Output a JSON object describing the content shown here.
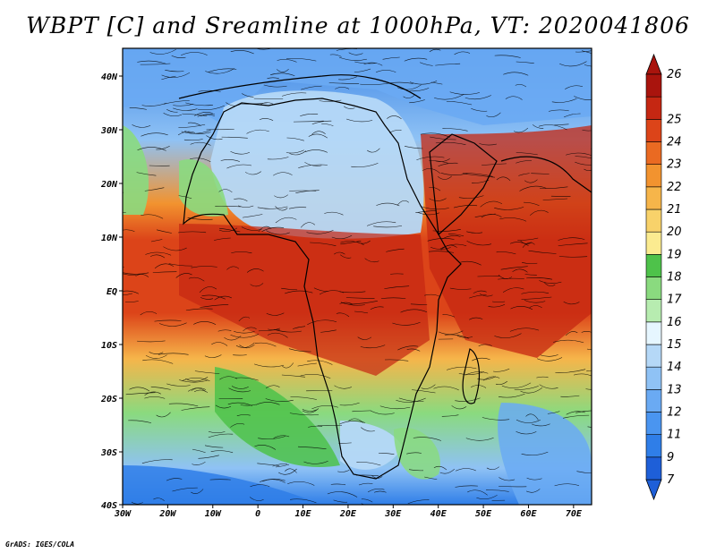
{
  "title": "WBPT [C] and Sreamline at 1000hPa, VT: 2020041806",
  "credit": "GrADS: IGES/COLA",
  "map": {
    "lon_labels": [
      "30W",
      "20W",
      "10W",
      "0",
      "10E",
      "20E",
      "30E",
      "40E",
      "50E",
      "60E",
      "70E"
    ],
    "lat_labels": [
      "40N",
      "30N",
      "20N",
      "10N",
      "EQ",
      "10S",
      "20S",
      "30S",
      "40S"
    ]
  },
  "colorbar": {
    "levels": [
      "7",
      "9",
      "11",
      "12",
      "13",
      "14",
      "15",
      "16",
      "17",
      "18",
      "19",
      "20",
      "21",
      "22",
      "23",
      "24",
      "25",
      "26"
    ],
    "colors": [
      "#1e5fd8",
      "#2f7ee8",
      "#4a95f0",
      "#6aaaf3",
      "#8fc2f5",
      "#b5d8f7",
      "#e6f6ff",
      "#b7ecb0",
      "#8ada7f",
      "#4ec24a",
      "#fbeb90",
      "#f8d26a",
      "#f6b54a",
      "#f2932f",
      "#ea6a22",
      "#dc4419",
      "#c52712",
      "#a9140d"
    ]
  }
}
